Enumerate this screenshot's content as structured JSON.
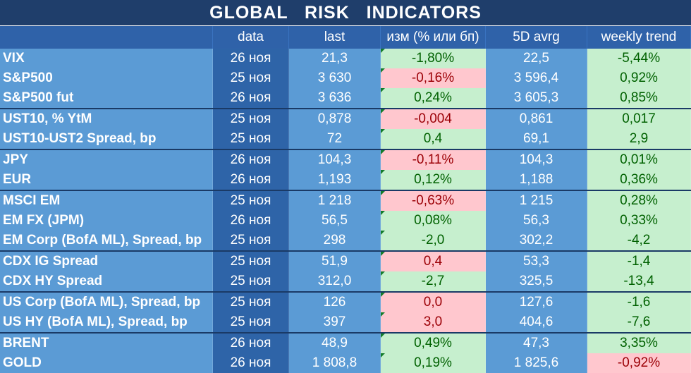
{
  "title": "GLOBAL   RISK   INDICATORS",
  "colors": {
    "title_bg": "#1f3e6b",
    "header_bg": "#2f62a9",
    "positive_bg": "#c6efce",
    "negative_bg": "#ffc7ce"
  },
  "headers": [
    "",
    "data",
    "last",
    "изм (% или бп)",
    "5D avrg",
    "weekly trend"
  ],
  "rows": [
    {
      "name": "VIX",
      "date": "26 ноя",
      "last": "21,3",
      "change": "-1,80%",
      "avg": "22,5",
      "trend": "-5,44%",
      "chg_sign": "pos",
      "trend_sign": "pos",
      "sep": false
    },
    {
      "name": "S&P500",
      "date": "25 ноя",
      "last": "3 630",
      "change": "-0,16%",
      "avg": "3 596,4",
      "trend": "0,92%",
      "chg_sign": "neg",
      "trend_sign": "pos",
      "sep": false
    },
    {
      "name": "S&P500 fut",
      "date": "26 ноя",
      "last": "3 636",
      "change": "0,24%",
      "avg": "3 605,3",
      "trend": "0,85%",
      "chg_sign": "pos",
      "trend_sign": "pos",
      "sep": false
    },
    {
      "name": "UST10, % YtM",
      "date": "25 ноя",
      "last": "0,878",
      "change": "-0,004",
      "avg": "0,861",
      "trend": "0,017",
      "chg_sign": "neg",
      "trend_sign": "pos",
      "sep": true
    },
    {
      "name": "UST10-UST2 Spread, bp",
      "date": "25 ноя",
      "last": "72",
      "change": "0,4",
      "avg": "69,1",
      "trend": "2,9",
      "chg_sign": "pos",
      "trend_sign": "pos",
      "sep": false
    },
    {
      "name": "JPY",
      "date": "26 ноя",
      "last": "104,3",
      "change": "-0,11%",
      "avg": "104,3",
      "trend": "0,01%",
      "chg_sign": "neg",
      "trend_sign": "pos",
      "sep": true
    },
    {
      "name": "EUR",
      "date": "26 ноя",
      "last": "1,193",
      "change": "0,12%",
      "avg": "1,188",
      "trend": "0,36%",
      "chg_sign": "pos",
      "trend_sign": "pos",
      "sep": false
    },
    {
      "name": "MSCI EM",
      "date": "25 ноя",
      "last": "1 218",
      "change": "-0,63%",
      "avg": "1 215",
      "trend": "0,28%",
      "chg_sign": "neg",
      "trend_sign": "pos",
      "sep": true
    },
    {
      "name": "EM FX (JPM)",
      "date": "26 ноя",
      "last": "56,5",
      "change": "0,08%",
      "avg": "56,3",
      "trend": "0,33%",
      "chg_sign": "pos",
      "trend_sign": "pos",
      "sep": false
    },
    {
      "name": "EM Corp (BofA ML), Spread, bp",
      "date": "25 ноя",
      "last": "298",
      "change": "-2,0",
      "avg": "302,2",
      "trend": "-4,2",
      "chg_sign": "pos",
      "trend_sign": "pos",
      "sep": false
    },
    {
      "name": "CDX IG Spread",
      "date": "25 ноя",
      "last": "51,9",
      "change": "0,4",
      "avg": "53,3",
      "trend": "-1,4",
      "chg_sign": "neg",
      "trend_sign": "pos",
      "sep": true
    },
    {
      "name": "CDX HY Spread",
      "date": "25 ноя",
      "last": "312,0",
      "change": "-2,7",
      "avg": "325,5",
      "trend": "-13,4",
      "chg_sign": "pos",
      "trend_sign": "pos",
      "sep": false
    },
    {
      "name": "US Corp (BofA ML), Spread, bp",
      "date": "25 ноя",
      "last": "126",
      "change": "0,0",
      "avg": "127,6",
      "trend": "-1,6",
      "chg_sign": "neg",
      "trend_sign": "pos",
      "sep": true
    },
    {
      "name": "US HY (BofA ML), Spread, bp",
      "date": "25 ноя",
      "last": "397",
      "change": "3,0",
      "avg": "404,6",
      "trend": "-7,6",
      "chg_sign": "neg",
      "trend_sign": "pos",
      "sep": false
    },
    {
      "name": "BRENT",
      "date": "26 ноя",
      "last": "48,9",
      "change": "0,49%",
      "avg": "47,3",
      "trend": "3,35%",
      "chg_sign": "pos",
      "trend_sign": "pos",
      "sep": true
    },
    {
      "name": "GOLD",
      "date": "26 ноя",
      "last": "1 808,8",
      "change": "0,19%",
      "avg": "1 825,6",
      "trend": "-0,92%",
      "chg_sign": "pos",
      "trend_sign": "neg",
      "sep": false
    }
  ]
}
